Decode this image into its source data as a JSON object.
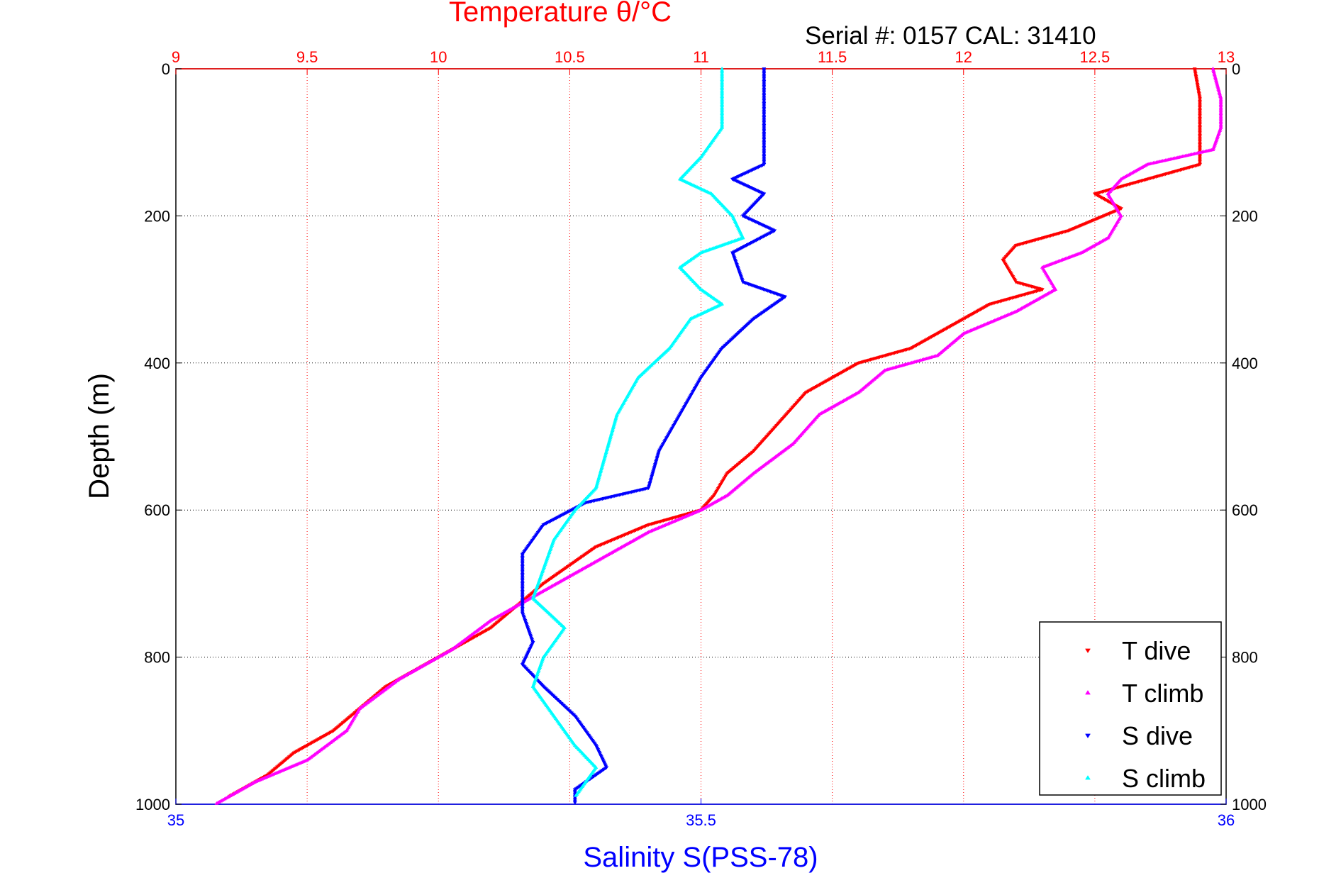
{
  "chart_data": {
    "type": "scatter",
    "title": "Temperature θ/°C",
    "subtitle": "Serial #: 0157  CAL: 31410",
    "ylabel": "Depth (m)",
    "xlabel": "Salinity S(PSS-78)",
    "ylim": [
      0,
      1000
    ],
    "y_reversed": true,
    "y_ticks": [
      "0",
      "200",
      "400",
      "600",
      "800",
      "1000"
    ],
    "x_top": {
      "label": "Temperature θ/°C",
      "lim": [
        9,
        13
      ],
      "ticks": [
        "9",
        "9.5",
        "10",
        "10.5",
        "11",
        "11.5",
        "12",
        "12.5",
        "13"
      ],
      "color": "#ff0000",
      "grid": true
    },
    "x_bottom": {
      "label": "Salinity S(PSS-78)",
      "lim": [
        35,
        36
      ],
      "ticks": [
        "35",
        "35.5",
        "36"
      ],
      "color": "#0000ff"
    },
    "grid": true,
    "legend_position": "bottom-right",
    "series": [
      {
        "name": "T dive",
        "axis": "temperature",
        "color": "#ff0000",
        "points": [
          [
            12.88,
            0
          ],
          [
            12.9,
            40
          ],
          [
            12.9,
            80
          ],
          [
            12.9,
            130
          ],
          [
            12.7,
            150
          ],
          [
            12.5,
            170
          ],
          [
            12.6,
            190
          ],
          [
            12.4,
            220
          ],
          [
            12.2,
            240
          ],
          [
            12.15,
            260
          ],
          [
            12.2,
            290
          ],
          [
            12.3,
            300
          ],
          [
            12.1,
            320
          ],
          [
            11.95,
            350
          ],
          [
            11.8,
            380
          ],
          [
            11.6,
            400
          ],
          [
            11.4,
            440
          ],
          [
            11.3,
            480
          ],
          [
            11.2,
            520
          ],
          [
            11.1,
            550
          ],
          [
            11.05,
            580
          ],
          [
            11.0,
            600
          ],
          [
            10.8,
            620
          ],
          [
            10.6,
            650
          ],
          [
            10.4,
            700
          ],
          [
            10.3,
            730
          ],
          [
            10.2,
            760
          ],
          [
            10.0,
            800
          ],
          [
            9.8,
            840
          ],
          [
            9.7,
            870
          ],
          [
            9.6,
            900
          ],
          [
            9.45,
            930
          ],
          [
            9.35,
            960
          ],
          [
            9.2,
            990
          ]
        ]
      },
      {
        "name": "T climb",
        "axis": "temperature",
        "color": "#ff00ff",
        "points": [
          [
            12.95,
            0
          ],
          [
            12.98,
            40
          ],
          [
            12.98,
            80
          ],
          [
            12.95,
            110
          ],
          [
            12.7,
            130
          ],
          [
            12.6,
            150
          ],
          [
            12.55,
            170
          ],
          [
            12.6,
            200
          ],
          [
            12.55,
            230
          ],
          [
            12.45,
            250
          ],
          [
            12.3,
            270
          ],
          [
            12.35,
            300
          ],
          [
            12.2,
            330
          ],
          [
            12.0,
            360
          ],
          [
            11.9,
            390
          ],
          [
            11.7,
            410
          ],
          [
            11.6,
            440
          ],
          [
            11.45,
            470
          ],
          [
            11.35,
            510
          ],
          [
            11.2,
            550
          ],
          [
            11.1,
            580
          ],
          [
            11.0,
            600
          ],
          [
            10.8,
            630
          ],
          [
            10.6,
            670
          ],
          [
            10.4,
            710
          ],
          [
            10.2,
            750
          ],
          [
            10.05,
            790
          ],
          [
            9.85,
            830
          ],
          [
            9.7,
            870
          ],
          [
            9.65,
            900
          ],
          [
            9.5,
            940
          ],
          [
            9.3,
            970
          ],
          [
            9.15,
            1000
          ]
        ]
      },
      {
        "name": "S dive",
        "axis": "salinity",
        "color": "#0000ff",
        "points": [
          [
            35.56,
            0
          ],
          [
            35.56,
            60
          ],
          [
            35.56,
            130
          ],
          [
            35.53,
            150
          ],
          [
            35.56,
            170
          ],
          [
            35.54,
            200
          ],
          [
            35.57,
            220
          ],
          [
            35.53,
            250
          ],
          [
            35.54,
            290
          ],
          [
            35.58,
            310
          ],
          [
            35.55,
            340
          ],
          [
            35.52,
            380
          ],
          [
            35.5,
            420
          ],
          [
            35.48,
            470
          ],
          [
            35.46,
            520
          ],
          [
            35.45,
            570
          ],
          [
            35.39,
            590
          ],
          [
            35.35,
            620
          ],
          [
            35.33,
            660
          ],
          [
            35.33,
            700
          ],
          [
            35.33,
            740
          ],
          [
            35.34,
            780
          ],
          [
            35.33,
            810
          ],
          [
            35.35,
            840
          ],
          [
            35.38,
            880
          ],
          [
            35.4,
            920
          ],
          [
            35.41,
            950
          ],
          [
            35.38,
            980
          ],
          [
            35.38,
            1000
          ]
        ]
      },
      {
        "name": "S climb",
        "axis": "salinity",
        "color": "#00ffff",
        "points": [
          [
            35.52,
            0
          ],
          [
            35.52,
            80
          ],
          [
            35.5,
            120
          ],
          [
            35.48,
            150
          ],
          [
            35.51,
            170
          ],
          [
            35.53,
            200
          ],
          [
            35.54,
            230
          ],
          [
            35.5,
            250
          ],
          [
            35.48,
            270
          ],
          [
            35.5,
            300
          ],
          [
            35.52,
            320
          ],
          [
            35.49,
            340
          ],
          [
            35.47,
            380
          ],
          [
            35.44,
            420
          ],
          [
            35.42,
            470
          ],
          [
            35.41,
            520
          ],
          [
            35.4,
            570
          ],
          [
            35.38,
            600
          ],
          [
            35.36,
            640
          ],
          [
            35.35,
            680
          ],
          [
            35.34,
            720
          ],
          [
            35.37,
            760
          ],
          [
            35.35,
            800
          ],
          [
            35.34,
            840
          ],
          [
            35.36,
            880
          ],
          [
            35.38,
            920
          ],
          [
            35.4,
            950
          ],
          [
            35.38,
            990
          ]
        ]
      }
    ]
  }
}
